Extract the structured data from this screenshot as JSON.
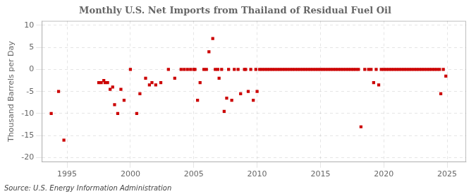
{
  "chart_data": {
    "type": "scatter",
    "title": "Monthly U.S. Net Imports from Thailand of Residual Fuel Oil",
    "ylabel": "Thousand Barrels per Day",
    "source": "Source: U.S. Energy Information Administration",
    "xlim": [
      1993.0,
      2026.5
    ],
    "ylim": [
      -21,
      11
    ],
    "xticks": [
      1995,
      2000,
      2005,
      2010,
      2015,
      2020,
      2025
    ],
    "yticks": [
      -20,
      -15,
      -10,
      -5,
      0,
      5,
      10
    ],
    "grid": true,
    "color": "#cc0000",
    "marker": "square",
    "x": [
      1993.75,
      1994.33,
      1994.75,
      1997.5,
      1997.7,
      1997.9,
      1998.0,
      1998.2,
      1998.4,
      1998.6,
      1998.75,
      1999.0,
      1999.25,
      1999.5,
      2000.0,
      2000.5,
      2000.75,
      2001.2,
      2001.5,
      2001.7,
      2002.0,
      2002.4,
      2003.0,
      2003.5,
      2004.0,
      2004.25,
      2004.5,
      2004.75,
      2005.0,
      2005.1,
      2005.3,
      2005.5,
      2005.8,
      2006.0,
      2006.2,
      2006.5,
      2006.7,
      2006.9,
      2007.0,
      2007.2,
      2007.4,
      2007.6,
      2007.75,
      2008.0,
      2008.2,
      2008.5,
      2008.7,
      2009.0,
      2009.1,
      2009.3,
      2009.5,
      2009.7,
      2009.9,
      2010.0,
      2010.2,
      2010.4,
      2010.6,
      2010.8,
      2011.0,
      2011.2,
      2011.4,
      2011.6,
      2011.8,
      2012.0,
      2012.2,
      2012.4,
      2012.6,
      2012.8,
      2013.0,
      2013.2,
      2013.4,
      2013.6,
      2013.8,
      2014.0,
      2014.2,
      2014.4,
      2014.6,
      2014.8,
      2015.0,
      2015.2,
      2015.4,
      2015.6,
      2015.8,
      2016.0,
      2016.2,
      2016.4,
      2016.6,
      2016.8,
      2017.0,
      2017.2,
      2017.4,
      2017.6,
      2017.8,
      2018.0,
      2018.2,
      2018.5,
      2018.8,
      2019.0,
      2019.2,
      2019.4,
      2019.6,
      2019.8,
      2020.0,
      2020.2,
      2020.4,
      2020.6,
      2020.8,
      2021.0,
      2021.2,
      2021.4,
      2021.6,
      2021.8,
      2022.0,
      2022.2,
      2022.4,
      2022.6,
      2022.8,
      2023.0,
      2023.2,
      2023.4,
      2023.6,
      2023.8,
      2024.0,
      2024.2,
      2024.4,
      2024.5,
      2024.7,
      2024.9
    ],
    "values": [
      -10,
      -5,
      -16,
      -3,
      -3,
      -2.5,
      -3,
      -3,
      -4.5,
      -4,
      -8,
      -10,
      -4.5,
      -7,
      0,
      -10,
      -5.5,
      -2,
      -3.5,
      -3,
      -3.5,
      -3,
      0,
      -2,
      0,
      0,
      0,
      0,
      0,
      0,
      -7,
      -3,
      0,
      0,
      4,
      7,
      0,
      0,
      -2,
      0,
      -9.5,
      -6.5,
      0,
      -7,
      0,
      0,
      -5.5,
      0,
      0,
      -5,
      0,
      -7,
      0,
      -5,
      0,
      0,
      0,
      0,
      0,
      0,
      0,
      0,
      0,
      0,
      0,
      0,
      0,
      0,
      0,
      0,
      0,
      0,
      0,
      0,
      0,
      0,
      0,
      0,
      0,
      0,
      0,
      0,
      0,
      0,
      0,
      0,
      0,
      0,
      0,
      0,
      0,
      0,
      0,
      0,
      -13,
      0,
      0,
      0,
      -3,
      0,
      -3.5,
      0,
      0,
      0,
      0,
      0,
      0,
      0,
      0,
      0,
      0,
      0,
      0,
      0,
      0,
      0,
      0,
      0,
      0,
      0,
      0,
      0,
      0,
      0,
      0,
      -5.5,
      0,
      -1.5
    ]
  }
}
